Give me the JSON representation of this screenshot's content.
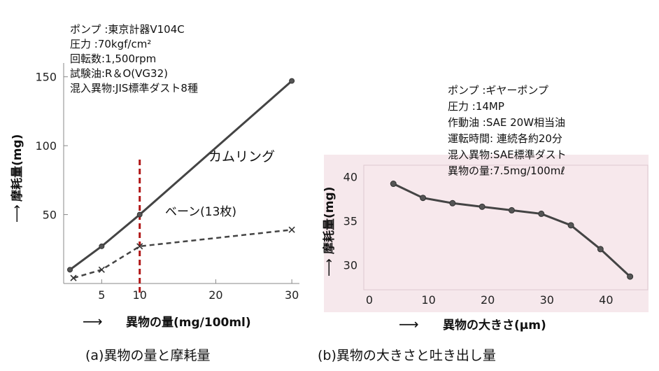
{
  "chart_data": [
    {
      "type": "line",
      "xlabel": "異物の量(mg/100ml)",
      "xlabel_arrow": "⟶",
      "ylabel": "摩耗量(mg)",
      "ylabel_arrow": "⟶",
      "caption": "(a)異物の量と摩耗量",
      "xlim": [
        0,
        31
      ],
      "ylim": [
        0,
        160
      ],
      "x_ticks": [
        5,
        10,
        20,
        30
      ],
      "y_ticks": [
        50,
        100,
        150
      ],
      "grid": false,
      "conditions": [
        "ポンプ :東京計器V104C",
        "圧力 :70kgf/cm²",
        "回転数:1,500rpm",
        "試験油:R＆O(VG32)",
        "混入異物:JIS標準ダスト8種"
      ],
      "series": [
        {
          "name": "カムリング",
          "style": "solid",
          "marker": "circle",
          "color": "#444444",
          "x": [
            0,
            5,
            10,
            30
          ],
          "y": [
            10,
            27,
            50,
            147
          ]
        },
        {
          "name": "ベーン(13枚)",
          "style": "dashed",
          "marker": "x",
          "color": "#444444",
          "x": [
            0,
            5,
            10,
            30
          ],
          "y": [
            4,
            10,
            27,
            39
          ]
        }
      ],
      "annotations": [
        {
          "type": "vline",
          "x": 10,
          "style": "dashed",
          "color": "#b01515"
        }
      ]
    },
    {
      "type": "line",
      "xlabel": "異物の大きさ(μm)",
      "xlabel_arrow": "⟶",
      "ylabel": "摩耗量(mg)",
      "ylabel_arrow": "⟶",
      "caption": "(b)異物の大きさと吐き出し量",
      "background": "#f6e8ec",
      "xlim": [
        0,
        48
      ],
      "ylim": [
        27.2,
        41.3
      ],
      "x_ticks": [
        0,
        10,
        20,
        30,
        40
      ],
      "y_ticks": [
        30,
        35,
        40
      ],
      "grid": false,
      "conditions": [
        "ポンプ  :ギヤーポンプ",
        "圧力   :14MP",
        "作動油  :SAE  20W相当油",
        "運転時間: 連続各約20分",
        "混入異物:SAE標準ダスト",
        "異物の量:7.5mg/100mℓ"
      ],
      "series": [
        {
          "name": "",
          "style": "solid",
          "marker": "circle",
          "color": "#444444",
          "x": [
            5,
            10,
            15,
            20,
            25,
            30,
            35,
            40,
            45
          ],
          "y": [
            39.2,
            37.6,
            37.0,
            36.6,
            36.2,
            35.8,
            34.5,
            31.8,
            28.7
          ]
        }
      ]
    }
  ]
}
